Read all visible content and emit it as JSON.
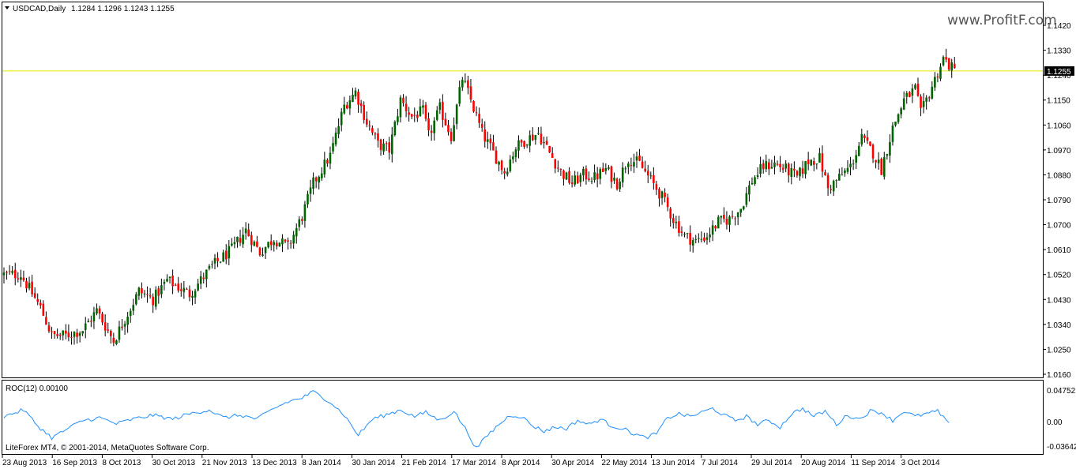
{
  "colors": {
    "background": "#ffffff",
    "frame": "#000000",
    "bull_body": "#006400",
    "bear_body": "#ff0000",
    "wick": "#000000",
    "level_line": "#e6e600",
    "roc_line": "#1e90ff",
    "price_tag_bg": "#000000",
    "price_tag_text": "#ffffff"
  },
  "header": {
    "symbol_label": "USDCAD,Daily",
    "ohlc_label": "1.1284 1.1296 1.1243 1.1255"
  },
  "watermark": {
    "text": "www.ProfitF.com"
  },
  "indicator": {
    "label": "ROC(12) 0.00100"
  },
  "copyright": {
    "text": "LiteForex MT4, © 2001-2014, MetaQuotes Software Corp."
  },
  "chart_data": [
    {
      "type": "candlestick",
      "ylim": [
        1.016,
        1.146
      ],
      "y_ticks": [
        "1.1420",
        "1.1330",
        "1.1240",
        "1.1150",
        "1.1060",
        "1.0970",
        "1.0880",
        "1.0790",
        "1.0700",
        "1.0610",
        "1.0520",
        "1.0430",
        "1.0340",
        "1.0250",
        "1.0160"
      ],
      "current_price": 1.1255,
      "current_price_label": "1.1255",
      "x_ticks": [
        "23 Aug 2013",
        "16 Sep 2013",
        "8 Oct 2013",
        "30 Oct 2013",
        "21 Nov 2013",
        "13 Dec 2013",
        "8 Jan 2014",
        "30 Jan 2014",
        "21 Feb 2014",
        "17 Mar 2014",
        "8 Apr 2014",
        "30 Apr 2014",
        "22 May 2014",
        "13 Jun 2014",
        "7 Jul 2014",
        "29 Jul 2014",
        "20 Aug 2014",
        "11 Sep 2014",
        "3 Oct 2014"
      ],
      "close_path": [
        [
          0,
          1.052
        ],
        [
          6,
          1.052
        ],
        [
          13,
          1.04
        ],
        [
          17,
          1.03
        ],
        [
          22,
          1.03
        ],
        [
          28,
          1.032
        ],
        [
          33,
          1.039
        ],
        [
          39,
          1.028
        ],
        [
          48,
          1.046
        ],
        [
          53,
          1.043
        ],
        [
          58,
          1.05
        ],
        [
          66,
          1.045
        ],
        [
          74,
          1.055
        ],
        [
          81,
          1.061
        ],
        [
          86,
          1.068
        ],
        [
          91,
          1.06
        ],
        [
          96,
          1.065
        ],
        [
          101,
          1.062
        ],
        [
          106,
          1.073
        ],
        [
          110,
          1.085
        ],
        [
          116,
          1.095
        ],
        [
          121,
          1.113
        ],
        [
          125,
          1.118
        ],
        [
          129,
          1.107
        ],
        [
          133,
          1.099
        ],
        [
          137,
          1.097
        ],
        [
          141,
          1.115
        ],
        [
          145,
          1.109
        ],
        [
          149,
          1.111
        ],
        [
          151,
          1.102
        ],
        [
          155,
          1.112
        ],
        [
          159,
          1.102
        ],
        [
          163,
          1.123
        ],
        [
          166,
          1.115
        ],
        [
          170,
          1.103
        ],
        [
          174,
          1.096
        ],
        [
          178,
          1.089
        ],
        [
          182,
          1.098
        ],
        [
          186,
          1.101
        ],
        [
          190,
          1.103
        ],
        [
          194,
          1.096
        ],
        [
          198,
          1.089
        ],
        [
          202,
          1.085
        ],
        [
          206,
          1.088
        ],
        [
          210,
          1.087
        ],
        [
          214,
          1.09
        ],
        [
          218,
          1.085
        ],
        [
          222,
          1.094
        ],
        [
          226,
          1.092
        ],
        [
          230,
          1.086
        ],
        [
          234,
          1.08
        ],
        [
          238,
          1.072
        ],
        [
          242,
          1.066
        ],
        [
          246,
          1.064
        ],
        [
          250,
          1.066
        ],
        [
          254,
          1.071
        ],
        [
          258,
          1.072
        ],
        [
          262,
          1.076
        ],
        [
          266,
          1.086
        ],
        [
          270,
          1.091
        ],
        [
          274,
          1.092
        ],
        [
          278,
          1.09
        ],
        [
          282,
          1.087
        ],
        [
          286,
          1.093
        ],
        [
          290,
          1.094
        ],
        [
          293,
          1.083
        ],
        [
          297,
          1.087
        ],
        [
          301,
          1.091
        ],
        [
          305,
          1.101
        ],
        [
          309,
          1.096
        ],
        [
          312,
          1.09
        ],
        [
          316,
          1.105
        ],
        [
          320,
          1.115
        ],
        [
          324,
          1.119
        ],
        [
          326,
          1.11
        ],
        [
          330,
          1.12
        ],
        [
          334,
          1.13
        ],
        [
          338,
          1.1255
        ]
      ],
      "roc_path": [
        [
          0,
          0.008
        ],
        [
          7,
          0.018
        ],
        [
          12,
          -0.006
        ],
        [
          17,
          -0.024
        ],
        [
          22,
          -0.012
        ],
        [
          28,
          0.002
        ],
        [
          34,
          0.006
        ],
        [
          40,
          -0.003
        ],
        [
          46,
          0.004
        ],
        [
          53,
          0.01
        ],
        [
          60,
          0.004
        ],
        [
          66,
          0.012
        ],
        [
          73,
          0.018
        ],
        [
          78,
          0.006
        ],
        [
          84,
          0.01
        ],
        [
          90,
          0.004
        ],
        [
          96,
          0.02
        ],
        [
          101,
          0.03
        ],
        [
          106,
          0.036
        ],
        [
          110,
          0.045
        ],
        [
          116,
          0.03
        ],
        [
          121,
          0.01
        ],
        [
          126,
          -0.02
        ],
        [
          131,
          0.004
        ],
        [
          137,
          0.012
        ],
        [
          141,
          0.018
        ],
        [
          146,
          0.008
        ],
        [
          150,
          0.014
        ],
        [
          155,
          0.002
        ],
        [
          160,
          0.016
        ],
        [
          164,
          -0.01
        ],
        [
          168,
          -0.04
        ],
        [
          172,
          -0.02
        ],
        [
          176,
          -0.004
        ],
        [
          180,
          0.01
        ],
        [
          184,
          0.008
        ],
        [
          188,
          -0.006
        ],
        [
          192,
          -0.014
        ],
        [
          196,
          -0.008
        ],
        [
          200,
          -0.01
        ],
        [
          204,
          0.002
        ],
        [
          208,
          -0.004
        ],
        [
          212,
          0.004
        ],
        [
          216,
          -0.006
        ],
        [
          220,
          -0.01
        ],
        [
          224,
          -0.018
        ],
        [
          228,
          -0.024
        ],
        [
          232,
          -0.018
        ],
        [
          236,
          0.006
        ],
        [
          240,
          0.012
        ],
        [
          244,
          0.008
        ],
        [
          248,
          0.014
        ],
        [
          252,
          0.02
        ],
        [
          256,
          0.01
        ],
        [
          260,
          0.002
        ],
        [
          264,
          0.008
        ],
        [
          268,
          -0.004
        ],
        [
          272,
          0.002
        ],
        [
          276,
          -0.008
        ],
        [
          280,
          0.012
        ],
        [
          284,
          0.02
        ],
        [
          288,
          0.008
        ],
        [
          292,
          0.016
        ],
        [
          296,
          -0.004
        ],
        [
          300,
          0.01
        ],
        [
          304,
          0.004
        ],
        [
          308,
          0.016
        ],
        [
          312,
          0.014
        ],
        [
          316,
          0.002
        ],
        [
          320,
          0.016
        ],
        [
          324,
          0.008
        ],
        [
          328,
          0.012
        ],
        [
          332,
          0.016
        ],
        [
          336,
          -0.004
        ]
      ]
    },
    {
      "type": "line",
      "ylim": [
        -0.04,
        0.05
      ],
      "y_ticks": [
        "0.04752",
        "0.00",
        "-0.03642"
      ],
      "y_tick_values": [
        0.04752,
        0.0,
        -0.03642
      ]
    }
  ]
}
